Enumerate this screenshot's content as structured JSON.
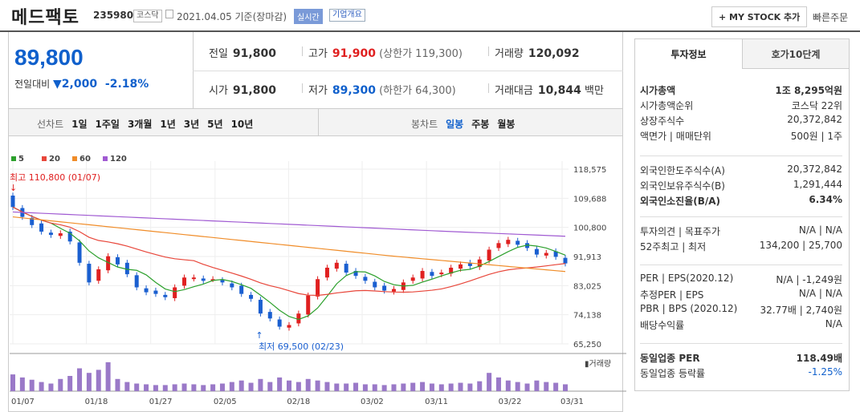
{
  "header": {
    "name": "메드팩토",
    "code": "235980",
    "market": "코스닥",
    "date": "2021.04.05 기준(장마감)",
    "realtime": "실시간",
    "overview": "기업개요",
    "mystock": "+ MY STOCK 추가",
    "quick": "빠른주문"
  },
  "price": {
    "now": "89,800",
    "diff_label": "전일대비",
    "diff": "2,000",
    "rate": "-2.18%"
  },
  "quote": {
    "prev_label": "전일",
    "prev": "91,800",
    "high_label": "고가",
    "high": "91,900",
    "upper": "(상한가 119,300)",
    "vol_label": "거래량",
    "vol": "120,092",
    "open_label": "시가",
    "open": "91,800",
    "low_label": "저가",
    "low": "89,300",
    "lower": "(하한가 64,300)",
    "amt_label": "거래대금",
    "amt": "10,844",
    "amt_unit": "백만"
  },
  "tabs": {
    "line": "선차트",
    "d1": "1일",
    "w1": "1주일",
    "m3": "3개월",
    "y1": "1년",
    "y3": "3년",
    "y5": "5년",
    "y10": "10년",
    "candle": "봉차트",
    "daily": "일봉",
    "weekly": "주봉",
    "monthly": "월봉"
  },
  "legend": [
    {
      "label": "5",
      "color": "#2ca02c"
    },
    {
      "label": "20",
      "color": "#e8463a"
    },
    {
      "label": "60",
      "color": "#f08c28"
    },
    {
      "label": "120",
      "color": "#a05ad2"
    }
  ],
  "chart_data": {
    "type": "candlestick",
    "y_ticks": [
      "118,575",
      "109,688",
      "100,800",
      "91,913",
      "83,025",
      "74,138",
      "65,250"
    ],
    "ylim": [
      65250,
      118575
    ],
    "x_ticks": [
      "01/07",
      "01/18",
      "01/27",
      "02/05",
      "02/18",
      "03/02",
      "03/11",
      "03/22",
      "03/31"
    ],
    "high_note": "최고 110,800 (01/07)",
    "low_note": "최저 69,500 (02/23)",
    "volume_label": "거래량",
    "closes": [
      107000,
      104000,
      101500,
      99500,
      98500,
      99000,
      96500,
      90000,
      84000,
      88000,
      92000,
      89500,
      86500,
      82500,
      81000,
      80500,
      79500,
      82500,
      85500,
      85500,
      84500,
      85000,
      84000,
      82500,
      80500,
      79000,
      74500,
      73000,
      70500,
      71000,
      74500,
      80000,
      85000,
      88500,
      90000,
      87000,
      86000,
      84500,
      82500,
      81500,
      82000,
      84000,
      85500,
      87500,
      86000,
      87000,
      88500,
      89500,
      89000,
      91000,
      94000,
      96000,
      97000,
      95500,
      94500,
      92500,
      93000,
      91800,
      89800
    ],
    "volumes": [
      22,
      18,
      15,
      12,
      10,
      16,
      20,
      30,
      24,
      28,
      38,
      16,
      12,
      10,
      9,
      8,
      8,
      9,
      10,
      9,
      8,
      9,
      10,
      12,
      14,
      11,
      16,
      12,
      18,
      14,
      12,
      16,
      14,
      12,
      10,
      10,
      11,
      9,
      9,
      8,
      9,
      10,
      11,
      12,
      10,
      9,
      10,
      11,
      10,
      13,
      24,
      18,
      14,
      12,
      10,
      14,
      12,
      11,
      9
    ]
  },
  "side": {
    "tab1": "투자정보",
    "tab2": "호가10단계",
    "r1": [
      {
        "k": "시가총액",
        "v": "1조 8,295억원"
      },
      {
        "k": "시가총액순위",
        "v": "코스닥 22위"
      },
      {
        "k": "상장주식수",
        "v": "20,372,842"
      },
      {
        "k": "액면가 | 매매단위",
        "v": "500원 | 1주"
      }
    ],
    "r2": [
      {
        "k": "외국인한도주식수(A)",
        "v": "20,372,842"
      },
      {
        "k": "외국인보유주식수(B)",
        "v": "1,291,444"
      },
      {
        "k": "외국인소진율(B/A)",
        "v": "6.34%"
      }
    ],
    "r3": [
      {
        "k": "투자의견 | 목표주가",
        "v": "N/A | N/A"
      },
      {
        "k": "52주최고 | 최저",
        "v": "134,200 | 25,700"
      }
    ],
    "r4": [
      {
        "k": "PER | EPS(2020.12)",
        "v": "N/A | -1,249원"
      },
      {
        "k": "추정PER | EPS",
        "v": "N/A | N/A"
      },
      {
        "k": "PBR | BPS (2020.12)",
        "v": "32.77배 | 2,740원"
      },
      {
        "k": "배당수익률",
        "v": "N/A"
      }
    ],
    "r5": [
      {
        "k": "동일업종 PER",
        "v": "118.49배"
      },
      {
        "k": "동일업종 등락률",
        "v": "-1.25%"
      }
    ]
  }
}
